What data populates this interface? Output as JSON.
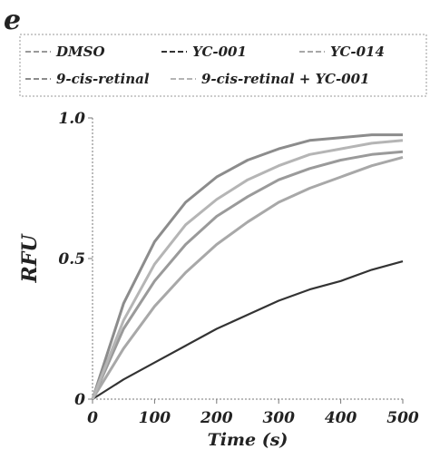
{
  "panel_label": "e",
  "chart_data": {
    "type": "line",
    "xlabel": "Time (s)",
    "ylabel": "RFU",
    "xlim": [
      0,
      500
    ],
    "ylim": [
      0,
      1.0
    ],
    "x_ticks": [
      "0",
      "100",
      "200",
      "300",
      "400",
      "500"
    ],
    "y_ticks": [
      "0",
      "0.5",
      "1.0"
    ],
    "legend_position": "top",
    "series": [
      {
        "name": "DMSO",
        "color": "#9a9a9a",
        "x": [
          0,
          50,
          100,
          150,
          200,
          250,
          300,
          350,
          400,
          450,
          500
        ],
        "y": [
          0,
          0.25,
          0.42,
          0.55,
          0.65,
          0.72,
          0.78,
          0.82,
          0.85,
          0.87,
          0.88
        ]
      },
      {
        "name": "YC-001",
        "color": "#333333",
        "x": [
          0,
          50,
          100,
          150,
          200,
          250,
          300,
          350,
          400,
          450,
          500
        ],
        "y": [
          0,
          0.07,
          0.13,
          0.19,
          0.25,
          0.3,
          0.35,
          0.39,
          0.42,
          0.46,
          0.49
        ]
      },
      {
        "name": "YC-014",
        "color": "#a8a8a8",
        "x": [
          0,
          50,
          100,
          150,
          200,
          250,
          300,
          350,
          400,
          450,
          500
        ],
        "y": [
          0,
          0.18,
          0.33,
          0.45,
          0.55,
          0.63,
          0.7,
          0.75,
          0.79,
          0.83,
          0.86
        ]
      },
      {
        "name": "9-cis-retinal",
        "color": "#8c8c8c",
        "x": [
          0,
          50,
          100,
          150,
          200,
          250,
          300,
          350,
          400,
          450,
          500
        ],
        "y": [
          0,
          0.34,
          0.56,
          0.7,
          0.79,
          0.85,
          0.89,
          0.92,
          0.93,
          0.94,
          0.94
        ]
      },
      {
        "name": "9-cis-retinal + YC-001",
        "color": "#b5b5b5",
        "x": [
          0,
          50,
          100,
          150,
          200,
          250,
          300,
          350,
          400,
          450,
          500
        ],
        "y": [
          0,
          0.28,
          0.48,
          0.62,
          0.71,
          0.78,
          0.83,
          0.87,
          0.89,
          0.91,
          0.92
        ]
      }
    ]
  }
}
